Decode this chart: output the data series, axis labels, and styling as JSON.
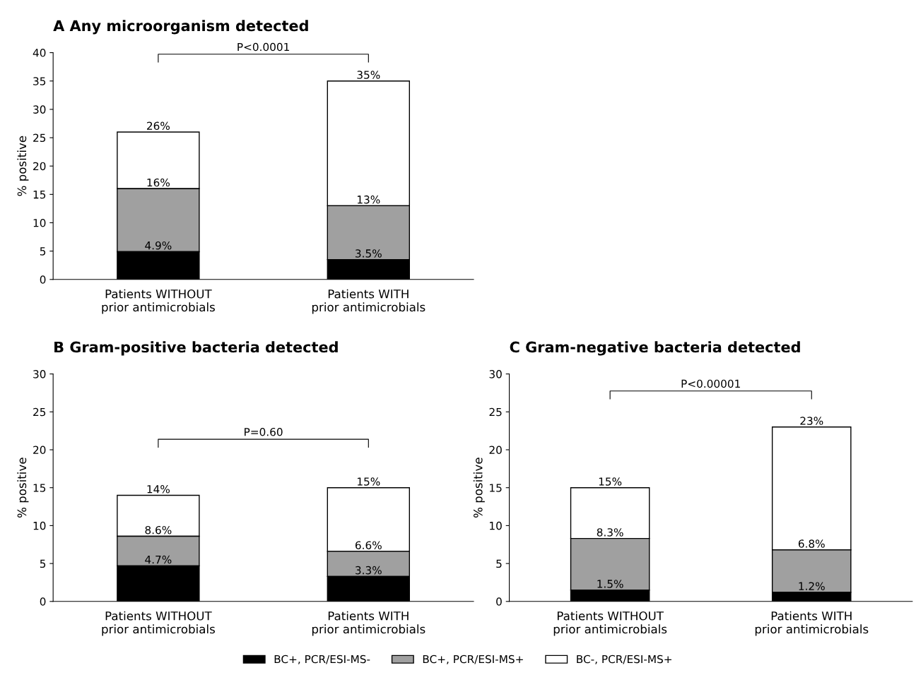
{
  "chart_data": [
    {
      "type": "bar",
      "title": "A Any microorganism detected",
      "ylabel": "% positive",
      "categories": [
        "Patients WITHOUT\nprior antimicrobials",
        "Patients WITH\nprior antimicrobials"
      ],
      "stacked": true,
      "ylim": [
        0,
        40
      ],
      "yticks": [
        0,
        5,
        10,
        15,
        20,
        25,
        30,
        35,
        40
      ],
      "grid": false,
      "legend": "bottom",
      "series": [
        {
          "name": "BC+, PCR/ESI-MS-",
          "color": "#000000",
          "values": [
            4.9,
            3.5
          ]
        },
        {
          "name": "BC+, PCR/ESI-MS+",
          "color": "#a0a0a0",
          "values": [
            11.1,
            9.5
          ]
        },
        {
          "name": "BC-, PCR/ESI-MS+",
          "color": "#ffffff",
          "values": [
            10,
            22
          ]
        }
      ],
      "annotations": [
        "P<0.0001",
        {
          "text": "4.9%",
          "x": "Patients WITHOUT\nprior antimicrobials",
          "y": 4.9
        },
        {
          "text": "16%",
          "x": "Patients WITHOUT\nprior antimicrobials",
          "y": 16
        },
        {
          "text": "26%",
          "x": "Patients WITHOUT\nprior antimicrobials",
          "y": 26
        },
        {
          "text": "3.5%",
          "x": "Patients WITH\nprior antimicrobials",
          "y": 3.5
        },
        {
          "text": "13%",
          "x": "Patients WITH\nprior antimicrobials",
          "y": 13
        },
        {
          "text": "35%",
          "x": "Patients WITH\nprior antimicrobials",
          "y": 35
        }
      ]
    },
    {
      "type": "bar",
      "title": "B Gram-positive bacteria detected",
      "ylabel": "% positive",
      "categories": [
        "Patients WITHOUT\nprior antimicrobials",
        "Patients WITH\nprior antimicrobials"
      ],
      "stacked": true,
      "ylim": [
        0,
        30
      ],
      "yticks": [
        0,
        5,
        10,
        15,
        20,
        25,
        30
      ],
      "grid": false,
      "series": [
        {
          "color": "#000000",
          "values": [
            4.7,
            3.3
          ]
        },
        {
          "color": "#a0a0a0",
          "values": [
            3.9,
            3.3
          ]
        },
        {
          "color": "#ffffff",
          "values": [
            5.4,
            8.4
          ]
        }
      ],
      "annotations": [
        "P=0.60",
        {
          "text": "4.7%",
          "x": "Patients WITHOUT\nprior antimicrobials",
          "y": 4.7
        },
        {
          "text": "8.6%",
          "x": "Patients WITHOUT\nprior antimicrobials",
          "y": 8.6
        },
        {
          "text": "14%",
          "x": "Patients WITHOUT\nprior antimicrobials",
          "y": 14
        },
        {
          "text": "3.3%",
          "x": "Patients WITH\nprior antimicrobials",
          "y": 3.3
        },
        {
          "text": "6.6%",
          "x": "Patients WITH\nprior antimicrobials",
          "y": 6.6
        },
        {
          "text": "15%",
          "x": "Patients WITH\nprior antimicrobials",
          "y": 15
        }
      ]
    },
    {
      "type": "bar",
      "title": "C Gram-negative bacteria detected",
      "ylabel": "% positive",
      "categories": [
        "Patients WITHOUT\nprior antimicrobials",
        "Patients WITH\nprior antimicrobials"
      ],
      "stacked": true,
      "ylim": [
        0,
        30
      ],
      "yticks": [
        0,
        5,
        10,
        15,
        20,
        25,
        30
      ],
      "grid": false,
      "series": [
        {
          "color": "#000000",
          "values": [
            1.5,
            1.2
          ]
        },
        {
          "color": "#a0a0a0",
          "values": [
            6.8,
            5.6
          ]
        },
        {
          "color": "#ffffff",
          "values": [
            6.7,
            16.2
          ]
        }
      ],
      "annotations": [
        "P<0.00001",
        {
          "text": "1.5%",
          "x": "Patients WITHOUT\nprior antimicrobials",
          "y": 1.5
        },
        {
          "text": "8.3%",
          "x": "Patients WITHOUT\nprior antimicrobials",
          "y": 8.3
        },
        {
          "text": "15%",
          "x": "Patients WITHOUT\nprior antimicrobials",
          "y": 15
        },
        {
          "text": "1.2%",
          "x": "Patients WITH\nprior antimicrobials",
          "y": 1.2
        },
        {
          "text": "6.8%",
          "x": "Patients WITH\nprior antimicrobials",
          "y": 6.8
        },
        {
          "text": "23%",
          "x": "Patients WITH\nprior antimicrobials",
          "y": 23
        }
      ]
    }
  ]
}
